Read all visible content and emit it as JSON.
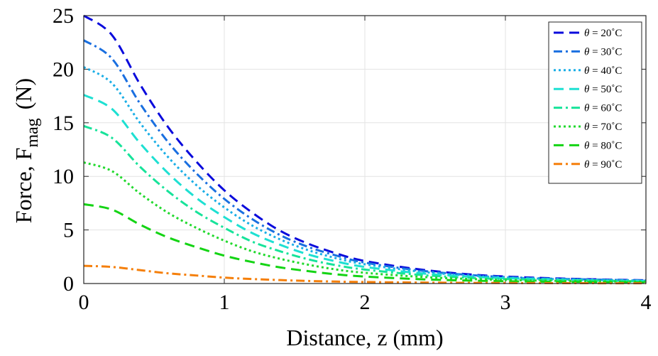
{
  "chart_data": {
    "type": "line",
    "title": "",
    "xlabel": "Distance, z (mm)",
    "ylabel": "Force, F",
    "ylabel_sub": "mag",
    "ylabel_unit": "(N)",
    "xlim": [
      0,
      4
    ],
    "ylim": [
      0,
      25
    ],
    "xticks": [
      0,
      1,
      2,
      3,
      4
    ],
    "yticks": [
      0,
      5,
      10,
      15,
      20,
      25
    ],
    "grid": true,
    "legend_position": "top-right",
    "x": [
      0,
      0.2,
      0.4,
      0.6,
      0.8,
      1.0,
      1.2,
      1.4,
      1.6,
      1.8,
      2.0,
      2.4,
      2.8,
      3.2,
      3.6,
      4.0
    ],
    "series": [
      {
        "name": "θ = 20˚C",
        "symbol": "θ",
        "label": " = 20˚C",
        "color": "#0a0adc",
        "dash": "14,8",
        "values": [
          25.0,
          23.2,
          18.6,
          14.6,
          11.4,
          8.7,
          6.6,
          4.9,
          3.7,
          2.8,
          2.1,
          1.3,
          0.8,
          0.55,
          0.4,
          0.3
        ]
      },
      {
        "name": "θ = 30˚C",
        "symbol": "θ",
        "label": " = 30˚C",
        "color": "#1a6fe0",
        "dash": "12,5,3,5",
        "values": [
          22.7,
          21.0,
          16.8,
          13.2,
          10.3,
          7.9,
          6.0,
          4.5,
          3.4,
          2.6,
          1.95,
          1.2,
          0.75,
          0.5,
          0.38,
          0.28
        ]
      },
      {
        "name": "θ = 40˚C",
        "symbol": "θ",
        "label": " = 40˚C",
        "color": "#1aaee6",
        "dash": "3,4",
        "values": [
          20.2,
          18.7,
          15.0,
          11.8,
          9.2,
          7.1,
          5.4,
          4.1,
          3.1,
          2.35,
          1.8,
          1.1,
          0.7,
          0.47,
          0.35,
          0.26
        ]
      },
      {
        "name": "θ = 50˚C",
        "symbol": "θ",
        "label": " = 50˚C",
        "color": "#1ee0d2",
        "dash": "14,8",
        "values": [
          17.6,
          16.3,
          13.1,
          10.3,
          8.0,
          6.2,
          4.7,
          3.6,
          2.7,
          2.05,
          1.55,
          0.95,
          0.6,
          0.42,
          0.31,
          0.23
        ]
      },
      {
        "name": "θ = 60˚C",
        "symbol": "θ",
        "label": " = 60˚C",
        "color": "#17e39a",
        "dash": "12,5,3,5",
        "values": [
          14.7,
          13.6,
          10.9,
          8.6,
          6.7,
          5.2,
          3.9,
          3.0,
          2.25,
          1.7,
          1.3,
          0.8,
          0.5,
          0.36,
          0.27,
          0.2
        ]
      },
      {
        "name": "θ = 70˚C",
        "symbol": "θ",
        "label": " = 70˚C",
        "color": "#22d92e",
        "dash": "3,4",
        "values": [
          11.3,
          10.5,
          8.4,
          6.6,
          5.2,
          4.0,
          3.0,
          2.3,
          1.75,
          1.3,
          1.0,
          0.62,
          0.4,
          0.28,
          0.21,
          0.16
        ]
      },
      {
        "name": "θ = 80˚C",
        "symbol": "θ",
        "label": " = 80˚C",
        "color": "#14d414",
        "dash": "14,8",
        "values": [
          7.4,
          6.9,
          5.5,
          4.3,
          3.4,
          2.6,
          2.0,
          1.5,
          1.15,
          0.85,
          0.65,
          0.4,
          0.26,
          0.18,
          0.14,
          0.1
        ]
      },
      {
        "name": "θ = 90˚C",
        "symbol": "θ",
        "label": " = 90˚C",
        "color": "#f57f0a",
        "dash": "12,5,3,5",
        "values": [
          1.65,
          1.55,
          1.25,
          0.95,
          0.75,
          0.55,
          0.42,
          0.32,
          0.24,
          0.18,
          0.14,
          0.09,
          0.06,
          0.04,
          0.03,
          0.02
        ]
      }
    ]
  }
}
